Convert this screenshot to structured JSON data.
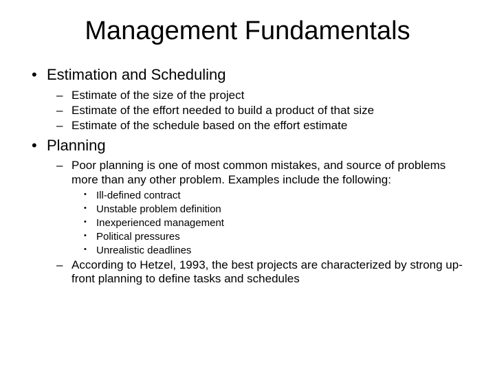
{
  "slide": {
    "title": "Management Fundamentals",
    "bullets": [
      {
        "text": "Estimation and Scheduling",
        "children": [
          {
            "text": "Estimate of the size of the project"
          },
          {
            "text": "Estimate of the effort needed to build a product of that size"
          },
          {
            "text": "Estimate of the schedule based on the effort estimate"
          }
        ]
      },
      {
        "text": "Planning",
        "children": [
          {
            "text": "Poor planning is one of most common mistakes, and source of problems more than any other problem. Examples include the following:",
            "children": [
              {
                "text": "Ill-defined contract"
              },
              {
                "text": "Unstable problem definition"
              },
              {
                "text": "Inexperienced management"
              },
              {
                "text": "Political pressures"
              },
              {
                "text": "Unrealistic deadlines"
              }
            ]
          },
          {
            "text": "According to Hetzel, 1993, the best projects are characterized by strong up-front planning to define tasks and schedules"
          }
        ]
      }
    ]
  },
  "style": {
    "background_color": "#ffffff",
    "text_color": "#000000",
    "font_family": "Arial",
    "title_fontsize": 38,
    "lvl1_fontsize": 22,
    "lvl2_fontsize": 17,
    "lvl3_fontsize": 15,
    "lvl1_marker": "•",
    "lvl2_marker": "–",
    "lvl3_marker": "•"
  }
}
